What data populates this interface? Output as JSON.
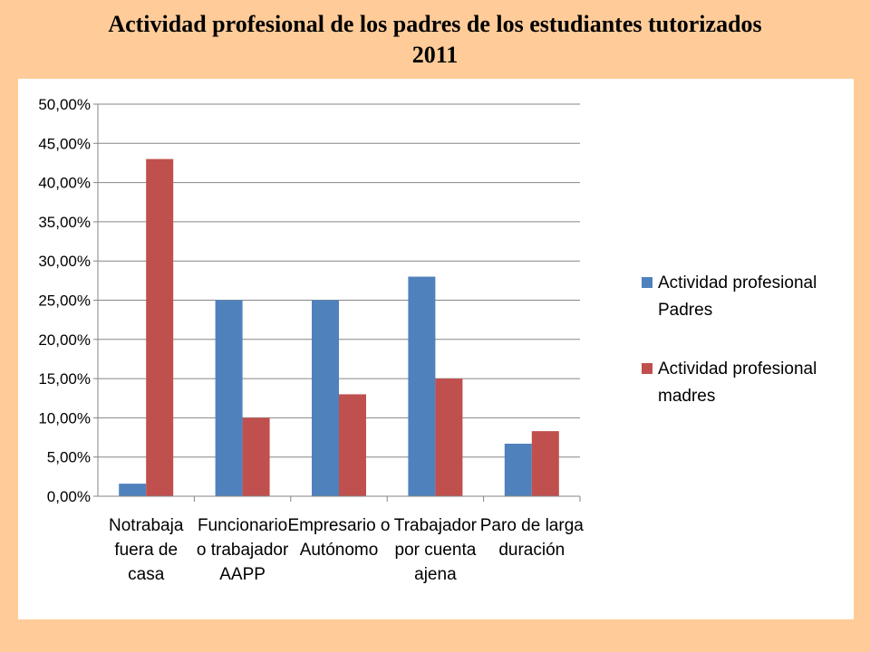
{
  "slide": {
    "title_line1": "Actividad profesional de los padres de los estudiantes tutorizados",
    "title_line2": "2011",
    "background_color": "#FFCC99",
    "panel_color": "#FFFFFF"
  },
  "chart_data": {
    "type": "bar",
    "title": "",
    "xlabel": "",
    "ylabel": "",
    "ylim": [
      0,
      50
    ],
    "y_ticks": [
      "0,00%",
      "5,00%",
      "10,00%",
      "15,00%",
      "20,00%",
      "25,00%",
      "30,00%",
      "35,00%",
      "40,00%",
      "45,00%",
      "50,00%"
    ],
    "grid": true,
    "legend_position": "right",
    "categories": [
      [
        "Notrabaja",
        "fuera de",
        "casa"
      ],
      [
        "Funcionario",
        "o trabajador",
        "AAPP"
      ],
      [
        "Empresario o",
        "Autónomo"
      ],
      [
        "Trabajador",
        "por cuenta",
        "ajena"
      ],
      [
        "Paro de larga",
        "duración"
      ]
    ],
    "series": [
      {
        "name": [
          "Actividad profesional",
          "Padres"
        ],
        "color": "#4F81BD",
        "values": [
          1.6,
          25,
          25,
          28,
          6.7
        ]
      },
      {
        "name": [
          "Actividad profesional",
          "madres"
        ],
        "color": "#C0504D",
        "values": [
          43,
          10,
          13,
          15,
          8.3
        ]
      }
    ]
  }
}
